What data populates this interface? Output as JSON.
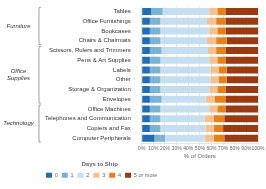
{
  "chart_data": {
    "type": "bar",
    "orientation": "horizontal",
    "stacked": true,
    "categories": [
      "Tables",
      "Office Furnishings",
      "Bookcases",
      "Chairs & Chairmats",
      "Scissors, Rulers and Trimmers",
      "Pens & Art Supplies",
      "Labels",
      "Other",
      "Storage & Organization",
      "Envelopes",
      "Office Machines",
      "Telephones and Communication",
      "Copiers and Fax",
      "Computer Peripherals"
    ],
    "group_labels": [
      "Furniture",
      "Office\nSupplies",
      "Technology"
    ],
    "group_spans": [
      4,
      6,
      4
    ],
    "series": [
      {
        "name": "0",
        "color": "#1f6eb5",
        "values": [
          0.08,
          0.07,
          0.07,
          0.07,
          0.07,
          0.07,
          0.07,
          0.07,
          0.07,
          0.07,
          0.07,
          0.07,
          0.07,
          0.11
        ]
      },
      {
        "name": "1",
        "color": "#7ab3d4",
        "values": [
          0.1,
          0.09,
          0.09,
          0.09,
          0.1,
          0.09,
          0.09,
          0.09,
          0.09,
          0.1,
          0.09,
          0.09,
          0.09,
          0.09
        ]
      },
      {
        "name": "2",
        "color": "#c5dff0",
        "values": [
          0.4,
          0.4,
          0.42,
          0.4,
          0.4,
          0.42,
          0.43,
          0.43,
          0.42,
          0.38,
          0.42,
          0.38,
          0.39,
          0.34
        ]
      },
      {
        "name": "3",
        "color": "#f5c191",
        "values": [
          0.07,
          0.08,
          0.07,
          0.08,
          0.07,
          0.07,
          0.07,
          0.07,
          0.07,
          0.08,
          0.07,
          0.08,
          0.07,
          0.08
        ]
      },
      {
        "name": "4",
        "color": "#e8801a",
        "values": [
          0.07,
          0.08,
          0.07,
          0.09,
          0.08,
          0.07,
          0.07,
          0.07,
          0.07,
          0.09,
          0.07,
          0.09,
          0.08,
          0.09
        ]
      },
      {
        "name": "5 or more",
        "color": "#9b3a10",
        "values": [
          0.28,
          0.28,
          0.28,
          0.27,
          0.28,
          0.28,
          0.27,
          0.27,
          0.28,
          0.28,
          0.28,
          0.29,
          0.3,
          0.29
        ]
      }
    ],
    "xlabel": "% of Orders",
    "xlim": [
      0.0,
      1.0
    ],
    "xticks": [
      {
        "value": 0.0,
        "label": "0%"
      },
      {
        "value": 0.1,
        "label": "10%"
      },
      {
        "value": 0.2,
        "label": "20%"
      },
      {
        "value": 0.3,
        "label": "30%"
      },
      {
        "value": 0.4,
        "label": "40%"
      },
      {
        "value": 0.5,
        "label": "50%"
      },
      {
        "value": 0.6,
        "label": "60%"
      },
      {
        "value": 0.7,
        "label": "70%"
      },
      {
        "value": 0.8,
        "label": "80%"
      },
      {
        "value": 0.9,
        "label": "90%"
      },
      {
        "value": 1.0,
        "label": "100%"
      }
    ],
    "legend_title": "Days to Ship",
    "legend": "lower left",
    "grid": true
  }
}
